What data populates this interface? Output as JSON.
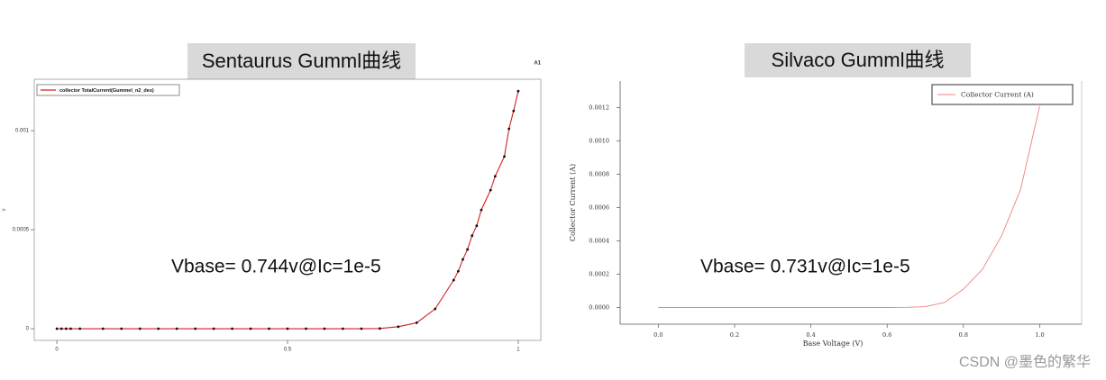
{
  "chart_data": [
    {
      "type": "line",
      "title": "Sentaurus Gumml曲线",
      "annotation": "Vbase= 0.744v@Ic=1e-5",
      "corner_label": "A1",
      "y_label": "Y",
      "x": [
        0,
        0.01,
        0.02,
        0.03,
        0.05,
        0.1,
        0.14,
        0.18,
        0.22,
        0.26,
        0.3,
        0.34,
        0.38,
        0.42,
        0.46,
        0.5,
        0.54,
        0.58,
        0.62,
        0.66,
        0.7,
        0.74,
        0.78,
        0.82,
        0.86,
        0.87,
        0.88,
        0.89,
        0.9,
        0.91,
        0.92,
        0.94,
        0.95,
        0.97,
        0.98,
        0.99,
        1.0
      ],
      "series": [
        {
          "name": "collector TotalCurrent(Gummel_n2_des)",
          "color": "#d42020",
          "values": [
            0,
            0,
            0,
            0,
            0,
            0,
            0,
            0,
            0,
            0,
            0,
            0,
            0,
            0,
            0,
            0,
            0,
            0,
            0,
            0,
            1e-06,
            1e-05,
            3e-05,
            0.0001,
            0.000245,
            0.00029,
            0.00035,
            0.0004,
            0.00047,
            0.00052,
            0.0006,
            0.0007,
            0.00077,
            0.00087,
            0.00101,
            0.0011,
            0.0012
          ]
        }
      ],
      "markers": true,
      "legend": "top-left",
      "xlim": [
        -0.049,
        1.049
      ],
      "ylim": [
        -5.9e-05,
        0.00126
      ],
      "xticks": [
        0,
        0.5,
        1
      ],
      "yticks": [
        0,
        0.0005,
        0.001
      ]
    },
    {
      "type": "line",
      "title": "Silvaco Gumml曲线",
      "annotation": "Vbase= 0.731v@Ic=1e-5",
      "x_label": "Base Voltage (V)",
      "y_label": "Collector Current (A)",
      "x": [
        0,
        0.1,
        0.2,
        0.3,
        0.4,
        0.5,
        0.6,
        0.65,
        0.7,
        0.75,
        0.8,
        0.85,
        0.9,
        0.95,
        1.0
      ],
      "series": [
        {
          "name": "Collector Current (A)",
          "color": "#f08080",
          "values": [
            0,
            0,
            0,
            0,
            0,
            0,
            0,
            1e-06,
            5e-06,
            3e-05,
            0.00011,
            0.00023,
            0.00043,
            0.00071,
            0.00121
          ]
        }
      ],
      "markers": false,
      "legend": "top-right",
      "xlim": [
        -0.1,
        1.11
      ],
      "ylim": [
        -0.0001,
        0.00136
      ],
      "xticks": [
        {
          "value": 0,
          "label": "0.0"
        },
        {
          "value": 0.2,
          "label": "0.2"
        },
        {
          "value": 0.4,
          "label": "0.4"
        },
        {
          "value": 0.6,
          "label": "0.6"
        },
        {
          "value": 0.8,
          "label": "0.8"
        },
        {
          "value": 1,
          "label": "1.0"
        }
      ],
      "yticks": [
        {
          "value": 0,
          "label": "0.0000"
        },
        {
          "value": 0.0002,
          "label": "0.0002"
        },
        {
          "value": 0.0004,
          "label": "0.0004"
        },
        {
          "value": 0.0006,
          "label": "0.0006"
        },
        {
          "value": 0.0008,
          "label": "0.0008"
        },
        {
          "value": 0.001,
          "label": "0.0010"
        },
        {
          "value": 0.0012,
          "label": "0.0012"
        }
      ]
    }
  ],
  "watermark": "CSDN @墨色的繁华"
}
